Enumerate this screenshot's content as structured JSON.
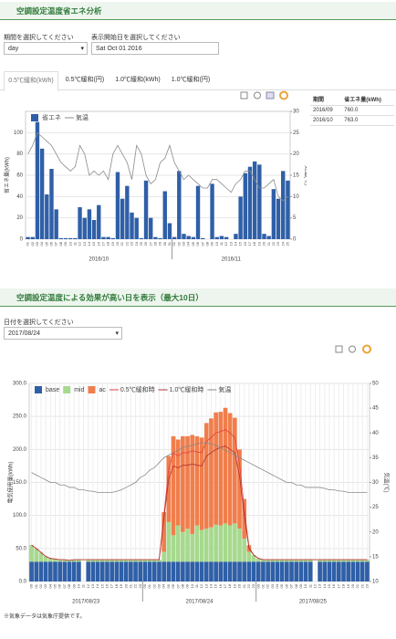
{
  "header": {
    "title": "空調設定温度省エネ分析"
  },
  "form1": {
    "period_label": "期間を選択してください",
    "period_value": "day",
    "start_label": "表示開始日を選択してください",
    "start_value": "Sat Oct 01 2016"
  },
  "tabs": [
    "0.5℃緩和(kWh)",
    "0.5℃緩和(円)",
    "1.0℃緩和(kWh)",
    "1.0℃緩和(円)"
  ],
  "table": {
    "headers": [
      "期間",
      "省エネ量(kWh)"
    ],
    "rows": [
      [
        "2016/09",
        "760.0"
      ],
      [
        "2016/10",
        "763.0"
      ]
    ]
  },
  "section2": {
    "title": "空調設定温度による効果が高い日を表示（最大10日）",
    "date_label": "日付を選択してください",
    "date_value": "2017/08/24"
  },
  "footnote": "※気象データは気象庁提供です。",
  "chart_data": [
    {
      "type": "bar",
      "stacked": false,
      "ylabel": "省エネ量(kWh)",
      "y2label": "気温(℃)",
      "categories": [
        "01",
        "02",
        "03",
        "04",
        "05",
        "06",
        "07",
        "08",
        "09",
        "10",
        "11",
        "12",
        "13",
        "14",
        "15",
        "16",
        "17",
        "18",
        "19",
        "20",
        "21",
        "22",
        "23",
        "24",
        "25",
        "26",
        "27",
        "28",
        "29",
        "30",
        "31",
        "01",
        "02",
        "03",
        "04",
        "05",
        "06",
        "07",
        "08",
        "09",
        "10",
        "11",
        "12",
        "13",
        "14",
        "15",
        "16",
        "17",
        "18",
        "19",
        "20",
        "21",
        "22",
        "23",
        "24",
        "25"
      ],
      "groups": [
        {
          "label": "2016/10",
          "start": 0,
          "end": 31
        },
        {
          "label": "2016/11",
          "start": 31,
          "end": 56
        }
      ],
      "series": [
        {
          "name": "省エネ",
          "type": "bar",
          "color": "#2f5fa7",
          "values": [
            2,
            2,
            110,
            85,
            42,
            66,
            28,
            1,
            1,
            1,
            1,
            30,
            20,
            28,
            18,
            32,
            2,
            2,
            1,
            63,
            38,
            50,
            25,
            20,
            1,
            55,
            20,
            2,
            1,
            45,
            15,
            2,
            64,
            5,
            3,
            2,
            50,
            1,
            0,
            52,
            2,
            3,
            2,
            0,
            5,
            40,
            62,
            68,
            73,
            70,
            5,
            3,
            47,
            38,
            64,
            55
          ]
        },
        {
          "name": "気温",
          "type": "line",
          "axis": "y2",
          "color": "#8a8a8a",
          "values": [
            20,
            22,
            25,
            24,
            23,
            22,
            20,
            18,
            17,
            16,
            17,
            22,
            20,
            15,
            16,
            15,
            16,
            14,
            20,
            22,
            20,
            18,
            14,
            22,
            20,
            15,
            13,
            14,
            18,
            19,
            22,
            18,
            16,
            14,
            15,
            14,
            13,
            12,
            12,
            14,
            14,
            13,
            12,
            11,
            13,
            14,
            16,
            16,
            14,
            12,
            12,
            13,
            14,
            10,
            9,
            10
          ]
        }
      ],
      "ylim": [
        0,
        120
      ],
      "yticks": [
        0,
        20,
        40,
        60,
        80,
        100
      ],
      "y2lim": [
        0,
        30
      ],
      "y2ticks": [
        0,
        5,
        10,
        15,
        20,
        25,
        30
      ],
      "grid": true,
      "xgrid": false
    },
    {
      "type": "bar",
      "stacked": true,
      "ylabel": "電気使用量(kWh)",
      "y2label": "気温(℃)",
      "categories": [
        "00",
        "01",
        "02",
        "03",
        "04",
        "05",
        "06",
        "07",
        "08",
        "09",
        "10",
        "11",
        "12",
        "13",
        "14",
        "15",
        "16",
        "17",
        "18",
        "19",
        "20",
        "21",
        "22",
        "23",
        "00",
        "01",
        "02",
        "03",
        "04",
        "05",
        "06",
        "07",
        "08",
        "09",
        "10",
        "11",
        "12",
        "13",
        "14",
        "15",
        "16",
        "17",
        "18",
        "19",
        "20",
        "21",
        "22",
        "23",
        "00",
        "01",
        "02",
        "03",
        "04",
        "05",
        "06",
        "07",
        "08",
        "09",
        "10",
        "11",
        "12",
        "13",
        "14",
        "15",
        "16",
        "17",
        "18",
        "19",
        "20",
        "21",
        "22",
        "23"
      ],
      "groups": [
        {
          "label": "2017/08/23",
          "start": 0,
          "end": 24
        },
        {
          "label": "2017/08/24",
          "start": 24,
          "end": 48
        },
        {
          "label": "2017/08/25",
          "start": 48,
          "end": 72
        }
      ],
      "series": [
        {
          "name": "base",
          "type": "bar",
          "color": "#2f5fa7",
          "values": [
            30,
            30,
            30,
            30,
            30,
            30,
            30,
            30,
            30,
            30,
            30,
            0,
            30,
            30,
            30,
            30,
            30,
            30,
            30,
            30,
            30,
            30,
            30,
            30,
            30,
            30,
            30,
            30,
            30,
            30,
            30,
            30,
            30,
            30,
            30,
            30,
            30,
            30,
            30,
            30,
            30,
            30,
            30,
            30,
            30,
            30,
            30,
            30,
            30,
            30,
            30,
            30,
            30,
            30,
            30,
            30,
            30,
            30,
            30,
            30,
            0,
            30,
            30,
            30,
            30,
            30,
            30,
            30,
            30,
            30,
            30,
            30
          ]
        },
        {
          "name": "mid",
          "type": "bar",
          "color": "#a6d98e",
          "values": [
            25,
            20,
            14,
            8,
            5,
            4,
            3,
            3,
            2,
            3,
            3,
            0,
            3,
            3,
            3,
            3,
            3,
            3,
            3,
            3,
            3,
            3,
            3,
            3,
            3,
            3,
            3,
            3,
            15,
            60,
            40,
            55,
            45,
            50,
            42,
            55,
            48,
            50,
            52,
            56,
            55,
            58,
            55,
            58,
            50,
            35,
            15,
            10,
            5,
            3,
            3,
            3,
            3,
            3,
            3,
            3,
            3,
            3,
            3,
            3,
            0,
            3,
            3,
            3,
            3,
            3,
            3,
            3,
            3,
            3,
            3,
            3
          ]
        },
        {
          "name": "ac",
          "type": "bar",
          "color": "#f07e4c",
          "values": [
            0,
            0,
            0,
            0,
            0,
            0,
            0,
            0,
            0,
            0,
            0,
            0,
            0,
            0,
            0,
            0,
            0,
            0,
            0,
            0,
            0,
            0,
            0,
            0,
            0,
            0,
            0,
            0,
            60,
            100,
            150,
            130,
            145,
            140,
            150,
            135,
            140,
            160,
            165,
            170,
            172,
            175,
            170,
            160,
            120,
            60,
            10,
            0,
            0,
            0,
            0,
            0,
            0,
            0,
            0,
            0,
            0,
            0,
            0,
            0,
            0,
            0,
            0,
            0,
            0,
            0,
            0,
            0,
            0,
            0,
            0,
            0
          ]
        },
        {
          "name": "0.5℃緩和時",
          "type": "line",
          "color": "#e04040",
          "values": [
            55,
            50,
            44,
            38,
            35,
            34,
            33,
            33,
            32,
            33,
            33,
            33,
            33,
            33,
            33,
            33,
            33,
            33,
            33,
            33,
            33,
            33,
            33,
            33,
            33,
            33,
            33,
            33,
            100,
            170,
            195,
            190,
            195,
            195,
            198,
            196,
            195,
            212,
            218,
            225,
            227,
            230,
            225,
            218,
            178,
            110,
            52,
            40,
            35,
            33,
            33,
            33,
            33,
            33,
            33,
            33,
            33,
            33,
            33,
            33,
            33,
            33,
            33,
            33,
            33,
            33,
            33,
            33,
            33,
            33,
            33,
            33
          ]
        },
        {
          "name": "1.0℃緩和時",
          "type": "line",
          "color": "#b03030",
          "values": [
            55,
            50,
            44,
            38,
            35,
            34,
            33,
            33,
            32,
            33,
            33,
            33,
            33,
            33,
            33,
            33,
            33,
            33,
            33,
            33,
            33,
            33,
            33,
            33,
            33,
            33,
            33,
            33,
            95,
            155,
            175,
            172,
            176,
            176,
            178,
            176,
            175,
            190,
            195,
            200,
            203,
            205,
            200,
            195,
            160,
            100,
            50,
            40,
            35,
            33,
            33,
            33,
            33,
            33,
            33,
            33,
            33,
            33,
            33,
            33,
            33,
            33,
            33,
            33,
            33,
            33,
            33,
            33,
            33,
            33,
            33,
            33
          ]
        },
        {
          "name": "気温",
          "type": "line",
          "axis": "y2",
          "color": "#8a8a8a",
          "values": [
            32,
            31.5,
            31,
            30.5,
            30,
            30,
            29.5,
            29.5,
            29,
            29,
            28.5,
            28.5,
            28.3,
            28.2,
            28,
            28,
            28,
            28,
            28.2,
            28.5,
            29,
            29.5,
            30,
            31,
            31.5,
            32.5,
            33,
            34,
            35,
            35.5,
            36,
            36.5,
            37,
            37.3,
            37.5,
            37.8,
            38,
            38,
            37.8,
            37.5,
            37,
            36.5,
            36,
            35.5,
            35,
            34.5,
            34,
            33.5,
            33,
            32.5,
            32,
            31.5,
            31,
            30.5,
            30,
            30,
            29.5,
            29.5,
            29,
            29,
            29,
            29,
            28.8,
            28.5,
            28.5,
            28.3,
            28.2,
            28,
            28,
            28,
            28,
            28
          ]
        }
      ],
      "ylim": [
        0,
        300
      ],
      "yticks": [
        {
          "value": 0,
          "label": "0.0"
        },
        {
          "value": 50,
          "label": "50.0"
        },
        {
          "value": 100,
          "label": "100.0"
        },
        {
          "value": 150,
          "label": "150.0"
        },
        {
          "value": 200,
          "label": "200.0"
        },
        {
          "value": 250,
          "label": "250.0"
        },
        {
          "value": 300,
          "label": "300.0"
        }
      ],
      "y2lim": [
        10,
        50
      ],
      "y2ticks": [
        10,
        15,
        20,
        25,
        30,
        35,
        40,
        45,
        50
      ],
      "grid": true,
      "xgrid": true
    }
  ]
}
